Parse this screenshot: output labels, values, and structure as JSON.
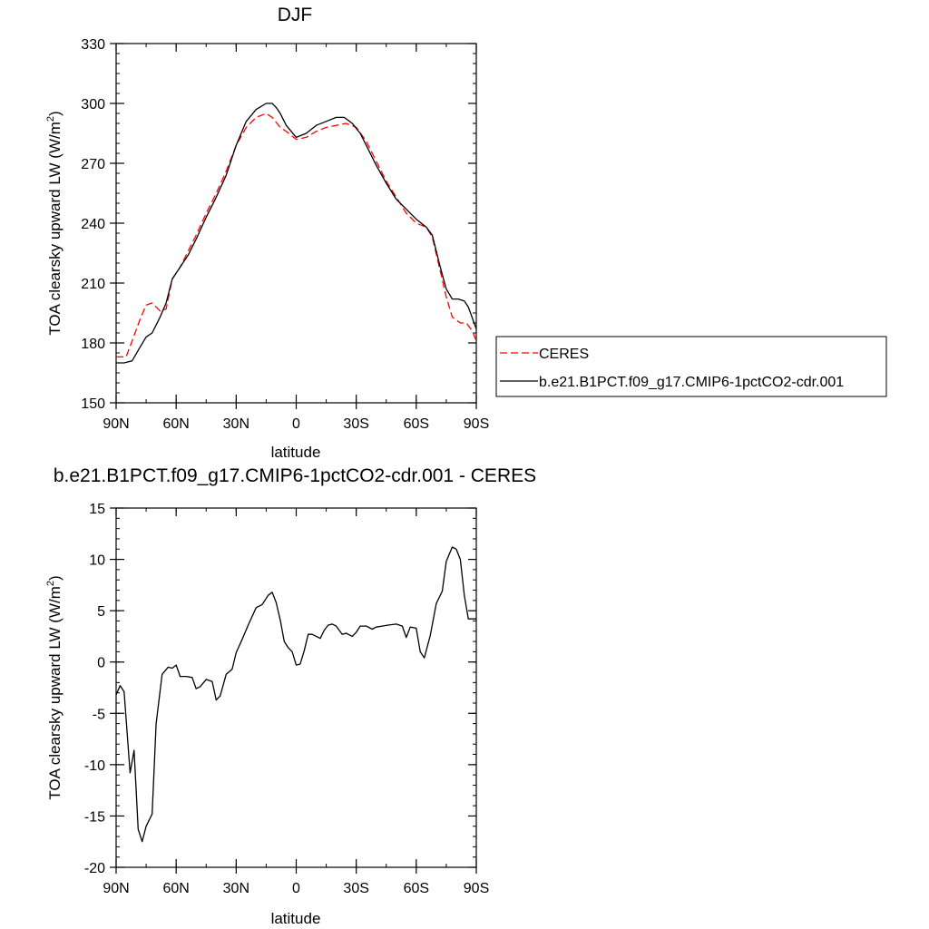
{
  "chart_data": [
    {
      "type": "line",
      "title": "DJF",
      "xlabel": "latitude",
      "ylabel_main": "TOA clearsky upward LW (W/m",
      "ylabel_sup": "2",
      "ylabel_close": ")",
      "xlim": [
        90,
        -90
      ],
      "ylim": [
        150,
        330
      ],
      "y_ticks": [
        150,
        180,
        210,
        240,
        270,
        300,
        330
      ],
      "y_tick_labels": [
        "150",
        "180",
        "210",
        "240",
        "270",
        "300",
        "330"
      ],
      "x_ticks": [
        90,
        60,
        30,
        0,
        -30,
        -60,
        -90
      ],
      "x_tick_labels": [
        "90N",
        "60N",
        "30N",
        "0",
        "30S",
        "60S",
        "90S"
      ],
      "legend_position": "right",
      "series": [
        {
          "name": "CERES",
          "color": "#ff0000",
          "dash": "dashed",
          "x": [
            90,
            85,
            82,
            78,
            75,
            72,
            68,
            65,
            62,
            58,
            54,
            50,
            45,
            40,
            35,
            30,
            25,
            20,
            15,
            12,
            8,
            5,
            0,
            -5,
            -10,
            -15,
            -20,
            -25,
            -30,
            -35,
            -40,
            -45,
            -50,
            -55,
            -60,
            -65,
            -68,
            -72,
            -75,
            -78,
            -82,
            -85,
            -88,
            -90
          ],
          "y": [
            173,
            173,
            181,
            192,
            199,
            200,
            196,
            197,
            212,
            218,
            226,
            234,
            245,
            255,
            266,
            279,
            288,
            293,
            295,
            293,
            288,
            286,
            282,
            283,
            286,
            288,
            289,
            290,
            288,
            281,
            271,
            261,
            253,
            245,
            240,
            238,
            233,
            216,
            203,
            193,
            190,
            190,
            186,
            181
          ]
        },
        {
          "name": "b.e21.B1PCT.f09_g17.CMIP6-1pctCO2-cdr.001",
          "color": "#000000",
          "dash": "solid",
          "x": [
            90,
            86,
            82,
            78,
            75,
            72,
            68,
            65,
            62,
            58,
            54,
            50,
            45,
            40,
            35,
            30,
            25,
            20,
            15,
            12,
            10,
            8,
            5,
            0,
            -5,
            -10,
            -15,
            -20,
            -24,
            -28,
            -32,
            -36,
            -40,
            -45,
            -50,
            -55,
            -60,
            -65,
            -68,
            -72,
            -75,
            -78,
            -81,
            -84,
            -86,
            -90
          ],
          "y": [
            170,
            170,
            171,
            178,
            183,
            185,
            193,
            200,
            212,
            218,
            224,
            232,
            243,
            253,
            264,
            279,
            291,
            297,
            300,
            300,
            298,
            295,
            289,
            283,
            285,
            289,
            291,
            293,
            293,
            290,
            285,
            277,
            269,
            260,
            252,
            247,
            242,
            238,
            234,
            218,
            207,
            202,
            202,
            201,
            198,
            187
          ]
        }
      ]
    },
    {
      "type": "line",
      "title": "b.e21.B1PCT.f09_g17.CMIP6-1pctCO2-cdr.001 - CERES",
      "xlabel": "latitude",
      "ylabel_main": "TOA clearsky upward LW (W/m",
      "ylabel_sup": "2",
      "ylabel_close": ")",
      "xlim": [
        90,
        -90
      ],
      "ylim": [
        -20,
        15
      ],
      "y_ticks": [
        -20,
        -15,
        -10,
        -5,
        0,
        5,
        10,
        15
      ],
      "y_tick_labels": [
        "-20",
        "-15",
        "-10",
        "-5",
        "0",
        "5",
        "10",
        "15"
      ],
      "x_ticks": [
        90,
        60,
        30,
        0,
        -30,
        -60,
        -90
      ],
      "x_tick_labels": [
        "90N",
        "60N",
        "30N",
        "0",
        "30S",
        "60S",
        "90S"
      ],
      "series": [
        {
          "color": "#000000",
          "dash": "solid",
          "x": [
            90,
            88,
            86,
            83,
            81,
            79,
            77,
            75,
            72,
            70,
            67,
            64,
            62,
            60,
            58,
            55,
            52,
            50,
            48,
            45,
            42,
            40,
            38,
            35,
            32,
            30,
            27,
            24,
            20,
            17,
            14,
            12,
            10,
            8,
            6,
            4,
            2,
            0,
            -2,
            -4,
            -6,
            -8,
            -10,
            -12,
            -14,
            -16,
            -18,
            -20,
            -23,
            -25,
            -28,
            -30,
            -32,
            -35,
            -38,
            -40,
            -43,
            -46,
            -50,
            -53,
            -55,
            -57,
            -60,
            -62,
            -64,
            -67,
            -70,
            -73,
            -75,
            -78,
            -80,
            -82,
            -84,
            -86,
            -88,
            -90
          ],
          "y": [
            -3.2,
            -2.3,
            -2.9,
            -10.8,
            -8.6,
            -16.3,
            -17.5,
            -16.0,
            -14.8,
            -6.0,
            -1.2,
            -0.5,
            -0.6,
            -0.3,
            -1.4,
            -1.4,
            -1.5,
            -2.6,
            -2.4,
            -1.7,
            -1.9,
            -3.7,
            -3.3,
            -1.2,
            -0.7,
            0.9,
            2.2,
            3.6,
            5.3,
            5.6,
            6.5,
            6.8,
            5.8,
            4.1,
            2.0,
            1.4,
            1.0,
            -0.3,
            -0.2,
            1.1,
            2.7,
            2.7,
            2.5,
            2.3,
            3.1,
            3.6,
            3.7,
            3.5,
            2.7,
            2.8,
            2.5,
            2.9,
            3.5,
            3.5,
            3.2,
            3.4,
            3.5,
            3.6,
            3.7,
            3.5,
            2.4,
            3.4,
            3.3,
            1.0,
            0.4,
            2.6,
            5.7,
            6.9,
            9.8,
            11.2,
            11.0,
            10.0,
            6.5,
            4.2,
            4.2,
            4.2
          ]
        }
      ]
    }
  ]
}
